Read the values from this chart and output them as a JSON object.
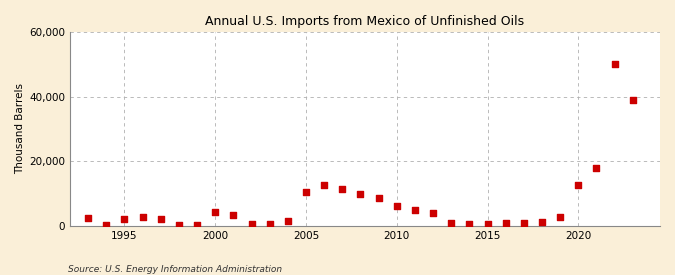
{
  "title": "Annual U.S. Imports from Mexico of Unfinished Oils",
  "ylabel": "Thousand Barrels",
  "source": "Source: U.S. Energy Information Administration",
  "background_color": "#faefd8",
  "plot_background_color": "#ffffff",
  "marker_color": "#cc0000",
  "years": [
    1993,
    1994,
    1995,
    1996,
    1997,
    1998,
    1999,
    2000,
    2001,
    2002,
    2003,
    2004,
    2005,
    2006,
    2007,
    2008,
    2009,
    2010,
    2011,
    2012,
    2013,
    2014,
    2015,
    2016,
    2017,
    2018,
    2019,
    2020,
    2021,
    2022,
    2023
  ],
  "values": [
    2500,
    300,
    2100,
    2800,
    2100,
    400,
    400,
    4200,
    3500,
    700,
    600,
    1400,
    10500,
    12800,
    11500,
    10000,
    8500,
    6000,
    5000,
    4000,
    800,
    500,
    700,
    900,
    1000,
    1200,
    2800,
    12800,
    18000,
    50000,
    39000
  ],
  "xlim": [
    1992.0,
    2024.5
  ],
  "ylim": [
    0,
    60000
  ],
  "yticks": [
    0,
    20000,
    40000,
    60000
  ],
  "xticks": [
    1995,
    2000,
    2005,
    2010,
    2015,
    2020
  ],
  "title_fontsize": 9,
  "label_fontsize": 7.5,
  "tick_fontsize": 7.5,
  "source_fontsize": 6.5
}
